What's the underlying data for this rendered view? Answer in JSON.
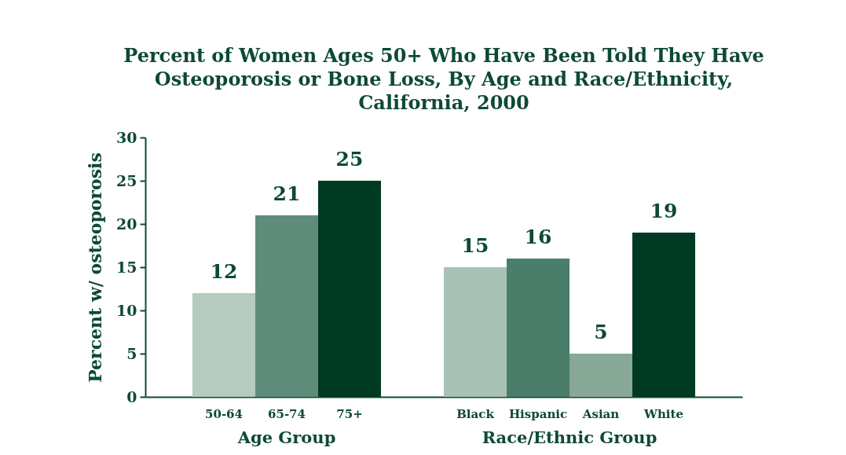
{
  "chart_data": {
    "type": "bar",
    "title": "Percent of Women Ages 50+ Who Have Been Told They Have Osteoporosis or Bone Loss, By Age and Race/Ethnicity, California, 2000",
    "ylabel": "Percent w/ osteoporosis",
    "categories": [
      "50-64",
      "65-74",
      "75+",
      null,
      "Black",
      "Hispanic",
      "Asian",
      "White"
    ],
    "values": [
      12,
      21,
      25,
      null,
      15,
      16,
      5,
      19
    ],
    "colors": [
      "#b5cbc0",
      "#5f8c7a",
      "#003a22",
      null,
      "#a9c2b6",
      "#4a7d6a",
      "#88a898",
      "#003a22"
    ],
    "ylim": [
      0,
      30
    ],
    "yticks": [
      0,
      5,
      10,
      15,
      20,
      25,
      30
    ],
    "grid": false,
    "data_labels": true,
    "annotations": [
      "Age Group",
      "Race/Ethnic Group"
    ]
  }
}
